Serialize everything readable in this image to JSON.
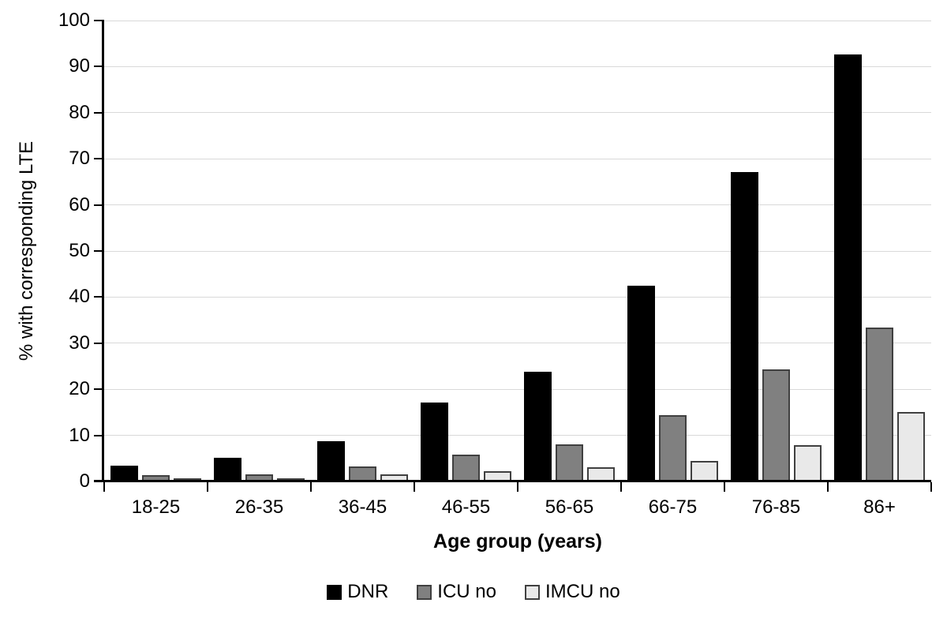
{
  "chart_data": {
    "type": "bar",
    "title": "",
    "xlabel": "Age group (years)",
    "ylabel": "% with corresponding LTE",
    "ylim": [
      0,
      100
    ],
    "ytick_interval": 10,
    "ytick_labels": [
      "0",
      "10",
      "20",
      "30",
      "40",
      "50",
      "60",
      "70",
      "80",
      "90",
      "100"
    ],
    "grid": true,
    "legend_position": "bottom",
    "categories": [
      "18-25",
      "26-35",
      "36-45",
      "46-55",
      "56-65",
      "66-75",
      "76-85",
      "86+"
    ],
    "series": [
      {
        "name": "DNR",
        "fill": "#000000",
        "border": "#000000",
        "values": [
          3.4,
          5.1,
          8.8,
          17.1,
          23.8,
          42.4,
          67.1,
          92.6
        ]
      },
      {
        "name": "ICU no",
        "fill": "#808080",
        "border": "#404040",
        "values": [
          1.3,
          1.6,
          3.2,
          5.9,
          8.1,
          14.4,
          24.3,
          33.4
        ]
      },
      {
        "name": "IMCU no",
        "fill": "#e9e9e9",
        "border": "#404040",
        "values": [
          0.5,
          0.3,
          1.5,
          2.3,
          3.0,
          4.4,
          7.8,
          15.1
        ]
      }
    ],
    "colors": {
      "background": "#ffffff",
      "gridline": "#d9d9d9",
      "axis": "#000000",
      "text": "#000000"
    }
  }
}
